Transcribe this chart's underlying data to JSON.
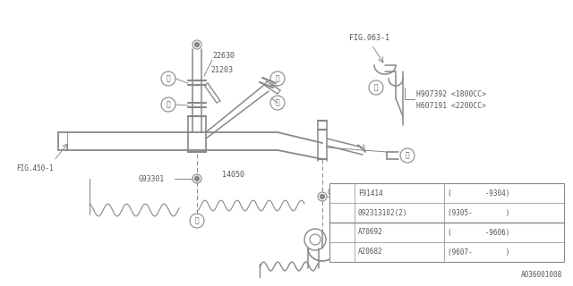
{
  "bg_color": "#ffffff",
  "line_color": "#888888",
  "text_color": "#555555",
  "footnote": "A036001008",
  "table_rows": [
    [
      "F91414",
      "(        -9304)"
    ],
    [
      "092313102(2)",
      "(9305-        )"
    ],
    [
      "A70692",
      "(        -9606)"
    ],
    [
      "A20682",
      "(9607-        )"
    ]
  ]
}
